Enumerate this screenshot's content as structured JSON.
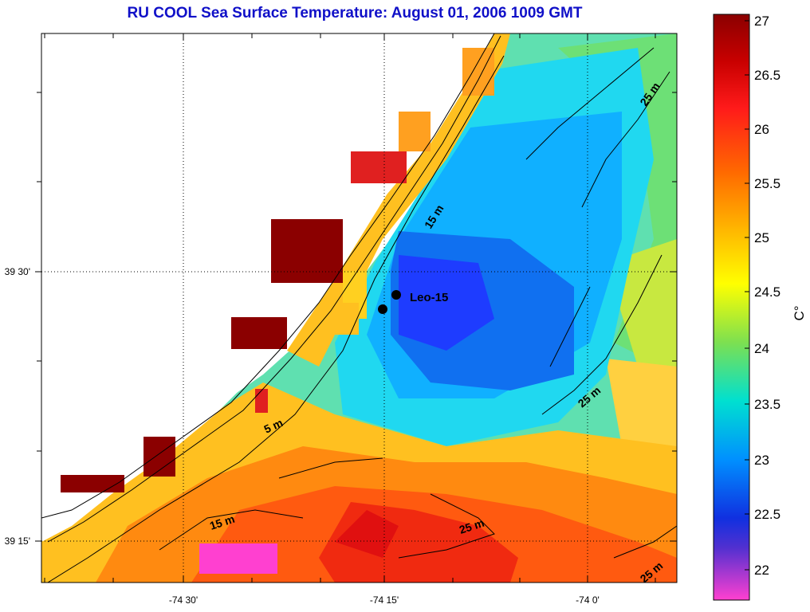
{
  "title": "RU COOL  Sea Surface Temperature:  August 01, 2006 1009 GMT",
  "axes": {
    "x_tick_labels": [
      "-74 30'",
      "-74 15'",
      "-74 0'"
    ],
    "y_tick_labels": [
      "39 30'",
      "39 15'"
    ]
  },
  "station": {
    "label": "Leo-15"
  },
  "contours": [
    "5 m",
    "15 m",
    "15 m",
    "25 m",
    "25 m",
    "25 m",
    "25 m"
  ],
  "colorbar": {
    "unit": "C°",
    "tick_labels": [
      "27",
      "26.5",
      "26",
      "25.5",
      "25",
      "24.5",
      "24",
      "23.5",
      "23",
      "22.5",
      "22"
    ]
  },
  "colors": {
    "title": "#1010c8",
    "warm_max": "#8b0000",
    "cool_min": "#1e3cff",
    "lowest": "#ff40d0"
  }
}
